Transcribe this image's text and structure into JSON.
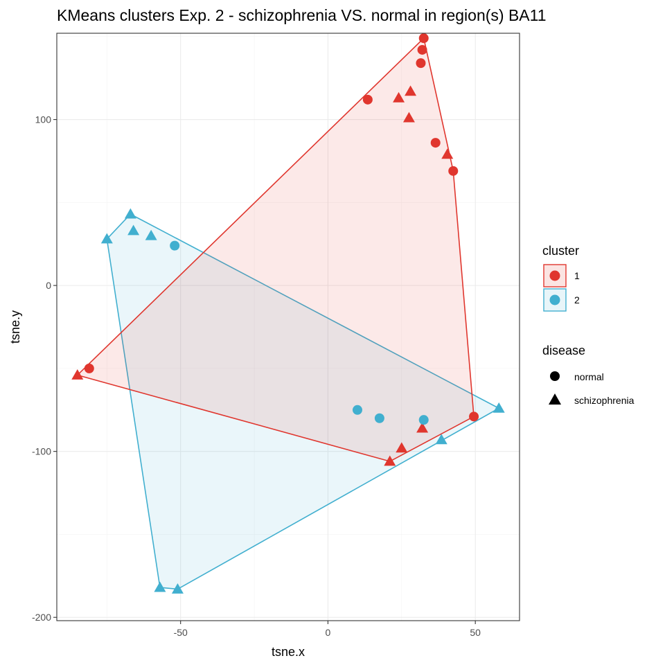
{
  "chart_data": {
    "type": "scatter",
    "title": "KMeans clusters Exp. 2 - schizophrenia VS. normal in region(s) BA11",
    "xlabel": "tsne.x",
    "ylabel": "tsne.y",
    "xlim": [
      -92,
      65
    ],
    "ylim": [
      -202,
      152
    ],
    "x_ticks": [
      -50,
      0,
      50
    ],
    "y_ticks": [
      -200,
      -100,
      0,
      100
    ],
    "x_tick_labels": [
      "-50",
      "0",
      "50"
    ],
    "y_tick_labels": [
      "-200",
      "-100",
      "0",
      "100"
    ],
    "grid": true,
    "legend_placement": "right",
    "colors": {
      "1": "#e0362e",
      "2": "#41afcf"
    },
    "legend": {
      "cluster": {
        "title": "cluster",
        "entries": [
          "1",
          "2"
        ]
      },
      "disease": {
        "title": "disease",
        "entries": [
          "normal",
          "schizophrenia"
        ]
      }
    },
    "series": [
      {
        "cluster": "1",
        "points": [
          {
            "x": 32.5,
            "y": 149,
            "disease": "normal"
          },
          {
            "x": 32,
            "y": 142,
            "disease": "normal"
          },
          {
            "x": 31.5,
            "y": 134,
            "disease": "normal"
          },
          {
            "x": 13.5,
            "y": 112,
            "disease": "normal"
          },
          {
            "x": 24,
            "y": 113,
            "disease": "schizophrenia"
          },
          {
            "x": 28,
            "y": 117,
            "disease": "schizophrenia"
          },
          {
            "x": 27.5,
            "y": 101,
            "disease": "schizophrenia"
          },
          {
            "x": 36.5,
            "y": 86,
            "disease": "normal"
          },
          {
            "x": 40.5,
            "y": 79,
            "disease": "schizophrenia"
          },
          {
            "x": 42.5,
            "y": 69,
            "disease": "normal"
          },
          {
            "x": -81,
            "y": -50,
            "disease": "normal"
          },
          {
            "x": -85,
            "y": -54,
            "disease": "schizophrenia"
          },
          {
            "x": 49.5,
            "y": -79,
            "disease": "normal"
          },
          {
            "x": 32,
            "y": -86,
            "disease": "schizophrenia"
          },
          {
            "x": 25,
            "y": -98,
            "disease": "schizophrenia"
          },
          {
            "x": 21,
            "y": -106,
            "disease": "schizophrenia"
          }
        ],
        "hull": [
          [
            32.5,
            149
          ],
          [
            42.5,
            69
          ],
          [
            49.5,
            -79
          ],
          [
            21,
            -106
          ],
          [
            -85,
            -54
          ]
        ]
      },
      {
        "cluster": "2",
        "points": [
          {
            "x": -67,
            "y": 43,
            "disease": "schizophrenia"
          },
          {
            "x": -66,
            "y": 33,
            "disease": "schizophrenia"
          },
          {
            "x": -60,
            "y": 30,
            "disease": "schizophrenia"
          },
          {
            "x": -75,
            "y": 28,
            "disease": "schizophrenia"
          },
          {
            "x": -52,
            "y": 24,
            "disease": "normal"
          },
          {
            "x": 10,
            "y": -75,
            "disease": "normal"
          },
          {
            "x": 17.5,
            "y": -80,
            "disease": "normal"
          },
          {
            "x": 32.5,
            "y": -81,
            "disease": "normal"
          },
          {
            "x": 58,
            "y": -74,
            "disease": "schizophrenia"
          },
          {
            "x": 38.5,
            "y": -93,
            "disease": "schizophrenia"
          },
          {
            "x": -57,
            "y": -182,
            "disease": "schizophrenia"
          },
          {
            "x": -51,
            "y": -183,
            "disease": "schizophrenia"
          }
        ],
        "hull": [
          [
            -67,
            43
          ],
          [
            58,
            -74
          ],
          [
            -51,
            -183
          ],
          [
            -57,
            -182
          ],
          [
            -75,
            28
          ]
        ]
      }
    ]
  }
}
